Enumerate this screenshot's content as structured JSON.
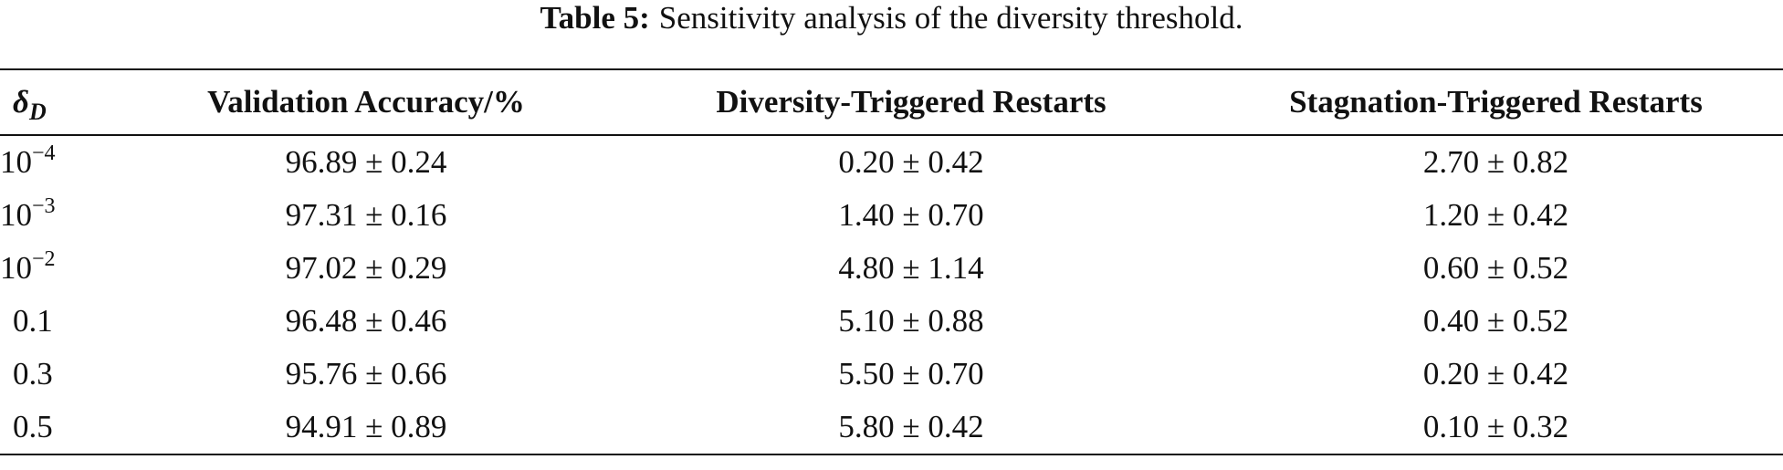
{
  "caption": {
    "label": "Table 5:",
    "text": "Sensitivity analysis of the diversity threshold."
  },
  "table": {
    "header": [
      {
        "symbol": "δ",
        "sub": "D"
      },
      "Validation Accuracy/%",
      "Diversity-Triggered Restarts",
      "Stagnation-Triggered Restarts"
    ],
    "rows": [
      [
        {
          "base": "10",
          "exp": "−4"
        },
        "96.89 ± 0.24",
        "0.20 ± 0.42",
        "2.70 ± 0.82"
      ],
      [
        {
          "base": "10",
          "exp": "−3"
        },
        "97.31 ± 0.16",
        "1.40 ± 0.70",
        "1.20 ± 0.42"
      ],
      [
        {
          "base": "10",
          "exp": "−2"
        },
        "97.02 ± 0.29",
        "4.80 ± 1.14",
        "0.60 ± 0.52"
      ],
      [
        "0.1",
        "96.48 ± 0.46",
        "5.10 ± 0.88",
        "0.40 ± 0.52"
      ],
      [
        "0.3",
        "95.76 ± 0.66",
        "5.50 ± 0.70",
        "0.20 ± 0.42"
      ],
      [
        "0.5",
        "94.91 ± 0.89",
        "5.80 ± 0.42",
        "0.10 ± 0.32"
      ]
    ]
  }
}
